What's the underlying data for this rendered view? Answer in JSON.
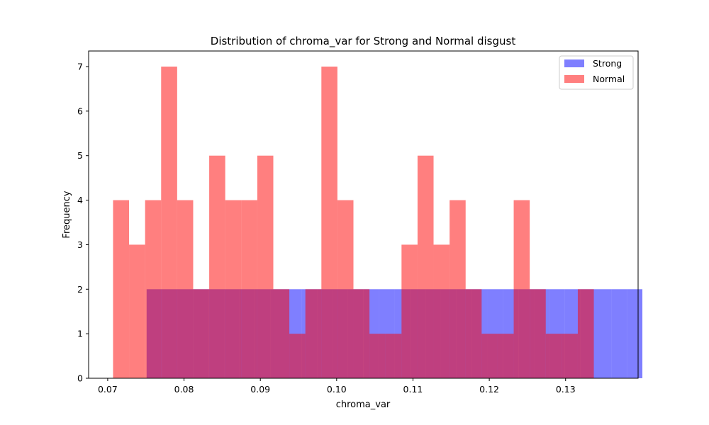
{
  "chart_data": {
    "type": "bar",
    "title": "Distribution of chroma_var for Strong and Normal disgust",
    "xlabel": "chroma_var",
    "ylabel": "Frequency",
    "xlim": [
      0.0675,
      0.1395
    ],
    "ylim": [
      0,
      7.35
    ],
    "xticks": [
      0.07,
      0.08,
      0.09,
      0.1,
      0.11,
      0.12,
      0.13
    ],
    "xtick_labels": [
      "0.07",
      "0.08",
      "0.09",
      "0.10",
      "0.11",
      "0.12",
      "0.13"
    ],
    "yticks": [
      0,
      1,
      2,
      3,
      4,
      5,
      6,
      7
    ],
    "ytick_labels": [
      "0",
      "1",
      "2",
      "3",
      "4",
      "5",
      "6",
      "7"
    ],
    "grid": false,
    "legend_position": "top-right",
    "series": [
      {
        "name": "Strong",
        "color": "#0000ff",
        "alpha": 0.5,
        "bin_start": 0.0751,
        "bin_width": 0.00203,
        "counts": [
          2,
          2,
          2,
          2,
          2,
          2,
          2,
          2,
          2,
          2,
          2,
          2,
          2,
          2,
          2,
          2,
          2,
          2,
          2,
          2,
          2,
          2,
          2,
          2,
          2,
          2,
          2,
          2,
          2,
          2,
          2,
          2
        ]
      },
      {
        "name": "Normal",
        "color": "#ff0000",
        "alpha": 0.5,
        "bin_start": 0.0707,
        "bin_width": 0.0021,
        "counts": [
          4,
          3,
          4,
          7,
          4,
          2,
          5,
          4,
          4,
          5,
          2,
          1,
          2,
          7,
          4,
          2,
          1,
          1,
          3,
          5,
          3,
          4,
          2,
          1,
          1,
          4,
          2,
          1,
          1,
          2
        ]
      }
    ]
  }
}
